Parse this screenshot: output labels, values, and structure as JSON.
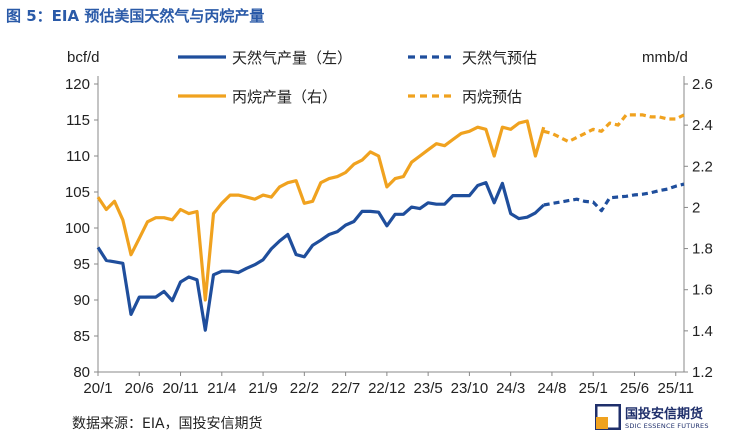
{
  "figure_title": "图 5：EIA 预估美国天然气与丙烷产量",
  "source_note": "数据来源：EIA，国投安信期货",
  "brand": {
    "name_cn": "国投安信期货",
    "name_en": "SDIC ESSENCE FUTURES"
  },
  "colors": {
    "natgas": "#1f4e9c",
    "propane": "#f0a21f",
    "title": "#2a5aa8"
  },
  "chart_data": {
    "type": "line",
    "title": "",
    "ylabel": "bcf/d",
    "y2label": "mmb/d",
    "ylim": [
      80,
      120
    ],
    "y2lim": [
      1.2,
      2.6
    ],
    "yticks": [
      80,
      85,
      90,
      95,
      100,
      105,
      110,
      115,
      120
    ],
    "y2ticks": [
      "1.2",
      "1.4",
      "1.6",
      "1.8",
      "2",
      "2.2",
      "2.4",
      "2.6"
    ],
    "xticks": [
      "20/1",
      "20/6",
      "20/11",
      "21/4",
      "21/9",
      "22/2",
      "22/7",
      "22/12",
      "23/5",
      "23/10",
      "24/3",
      "24/8",
      "25/1",
      "25/6",
      "25/11"
    ],
    "x_start": "2020-01",
    "legend": [
      "天然气产量（左）",
      "天然气预估",
      "丙烷产量（右）",
      "丙烷预估"
    ],
    "legend_position": "top",
    "series": [
      {
        "name": "天然气产量（左）",
        "axis": "left",
        "style": "solid",
        "color": "#1f4e9c",
        "x_start": "2020-01",
        "values": [
          97.3,
          95.5,
          95.3,
          95.1,
          88.0,
          90.4,
          90.4,
          90.4,
          91.2,
          89.9,
          92.5,
          93.2,
          92.8,
          85.8,
          93.5,
          94.0,
          94.0,
          93.8,
          94.4,
          94.9,
          95.6,
          97.1,
          98.2,
          99.1,
          96.3,
          96.0,
          97.6,
          98.3,
          99.1,
          99.5,
          100.4,
          100.9,
          102.3,
          102.3,
          102.2,
          100.3,
          101.9,
          101.9,
          102.9,
          102.7,
          103.5,
          103.3,
          103.3,
          104.5,
          104.5,
          104.5,
          105.9,
          106.3,
          103.5,
          106.2,
          102.0,
          101.3,
          101.5,
          102.1,
          103.2
        ]
      },
      {
        "name": "天然气预估",
        "axis": "left",
        "style": "dashed",
        "color": "#1f4e9c",
        "x_start": "2024-07",
        "values": [
          103.2,
          103.4,
          103.6,
          103.8,
          104.0,
          103.7,
          103.6,
          102.4,
          104.2,
          104.3,
          104.4,
          104.6,
          104.7,
          104.9,
          105.2,
          105.4,
          105.8,
          106.1
        ]
      },
      {
        "name": "丙烷产量（右）",
        "axis": "right",
        "style": "solid",
        "color": "#f0a21f",
        "x_start": "2020-01",
        "values": [
          2.05,
          1.99,
          2.03,
          1.94,
          1.77,
          1.85,
          1.93,
          1.95,
          1.95,
          1.94,
          1.99,
          1.97,
          1.98,
          1.55,
          1.97,
          2.02,
          2.06,
          2.06,
          2.05,
          2.04,
          2.06,
          2.05,
          2.1,
          2.12,
          2.13,
          2.02,
          2.03,
          2.12,
          2.14,
          2.15,
          2.17,
          2.21,
          2.23,
          2.27,
          2.25,
          2.1,
          2.14,
          2.15,
          2.22,
          2.25,
          2.28,
          2.31,
          2.3,
          2.33,
          2.36,
          2.37,
          2.39,
          2.38,
          2.25,
          2.39,
          2.38,
          2.41,
          2.42,
          2.25,
          2.39
        ]
      },
      {
        "name": "丙烷预估",
        "axis": "right",
        "style": "dashed",
        "color": "#f0a21f",
        "x_start": "2024-07",
        "values": [
          2.37,
          2.36,
          2.34,
          2.32,
          2.34,
          2.36,
          2.38,
          2.37,
          2.41,
          2.4,
          2.45,
          2.45,
          2.45,
          2.44,
          2.44,
          2.43,
          2.43,
          2.45
        ]
      }
    ]
  }
}
